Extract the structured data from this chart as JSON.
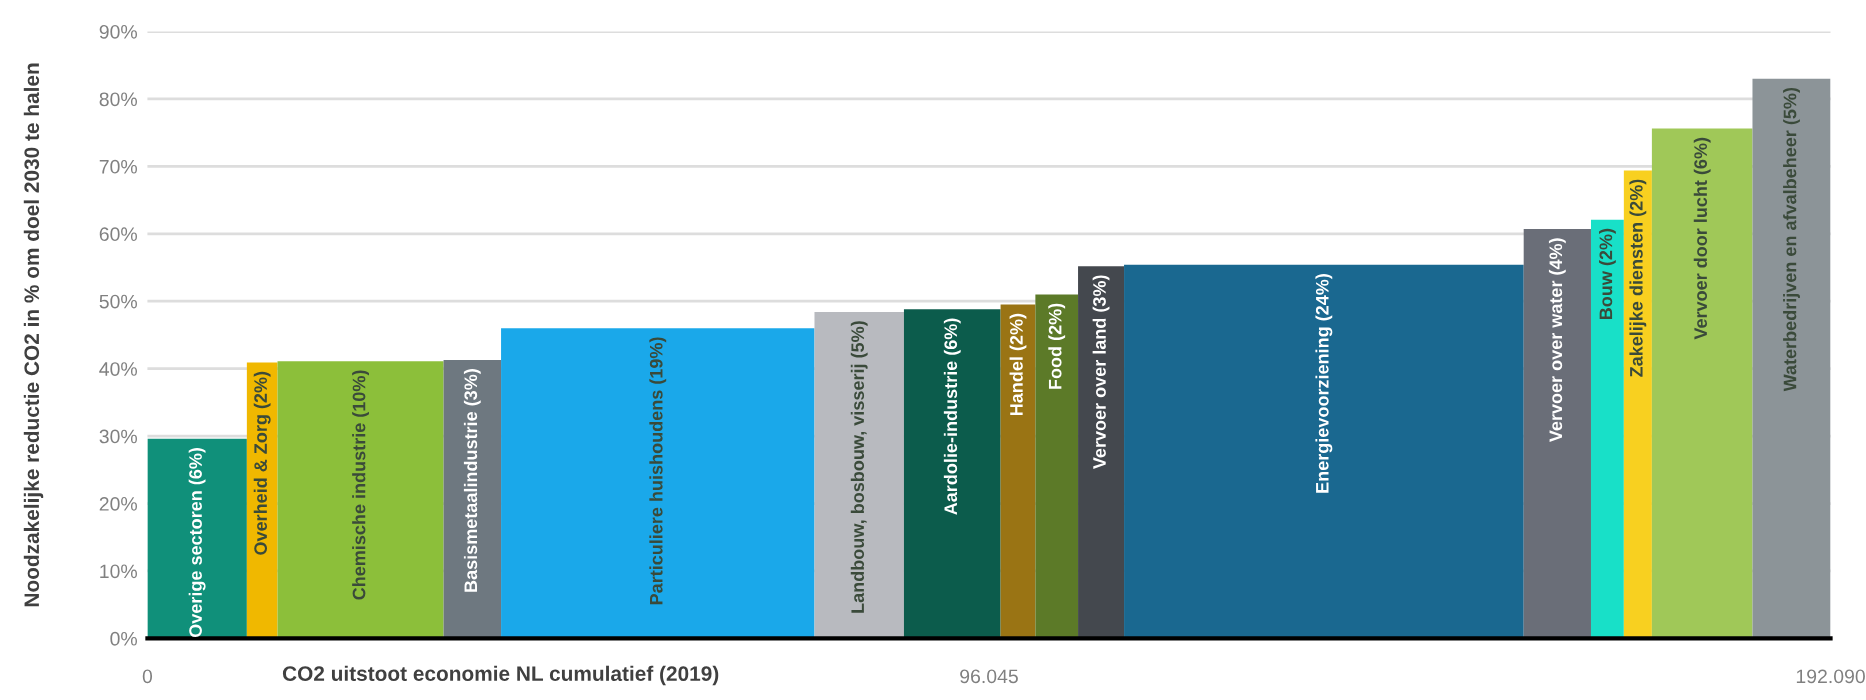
{
  "chart_data": {
    "type": "bar",
    "xlabel": "CO2 uitstoot economie NL cumulatief (2019)",
    "ylabel": "Noodzakelijke reductie CO2 in % om doel 2030 te halen",
    "x": [
      5675,
      13100,
      24325,
      37080,
      58245,
      81235,
      91855,
      99355,
      103775,
      108835,
      134265,
      160910,
      166625,
      170100,
      177440,
      187635
    ],
    "values": [
      29.6,
      40.9,
      41.1,
      41.3,
      46.0,
      48.4,
      48.8,
      49.5,
      51.0,
      55.2,
      55.4,
      60.7,
      62.1,
      69.4,
      75.6,
      83.0
    ],
    "colors": [
      "#10907a",
      "#f0b800",
      "#8cbf3a",
      "#6e7880",
      "#1aa8ea",
      "#b8babf",
      "#0c5c4c",
      "#9a7414",
      "#5c7a28",
      "#44484e",
      "#1a6890",
      "#6a6e78",
      "#18e0c8",
      "#f8d020",
      "#a0c858",
      "#8c9498"
    ],
    "annotations": [
      "Overige sectoren (6%)",
      "Overheid & Zorg (2%)",
      "Chemische industrie (10%)",
      "Basismetaalindustrie (3%)",
      "Particuliere huishoudens (19%)",
      "Landbouw, bosbouw, visserij (5%)",
      "Aardolie-industrie (6%)",
      "Handel (2%)",
      "Food (2%)",
      "Vervoer over land (3%)",
      "Energievoorziening (24%)",
      "Vervoer over water (4%)",
      "Bouw (2%)",
      "Zakelijke diensten (2%)",
      "Vervoer door lucht (6%)",
      "Waterbedrijven en afvalbeheer (5%)"
    ],
    "xlim": [
      0,
      192090
    ],
    "xticks": [
      0,
      {
        "value": 96045,
        "label": "96.045"
      },
      {
        "value": 192090,
        "label": "192.090"
      }
    ],
    "ylim": [
      0,
      90
    ],
    "yticks": [
      {
        "value": 0,
        "label": "0%"
      },
      {
        "value": 10,
        "label": "10%"
      },
      {
        "value": 20,
        "label": "20%"
      },
      {
        "value": 30,
        "label": "30%"
      },
      {
        "value": 40,
        "label": "40%"
      },
      {
        "value": 50,
        "label": "50%"
      },
      {
        "value": 60,
        "label": "60%"
      },
      {
        "value": 70,
        "label": "70%"
      },
      {
        "value": 80,
        "label": "80%"
      },
      {
        "value": 90,
        "label": "90%"
      }
    ],
    "grid": "y",
    "legend": false
  }
}
